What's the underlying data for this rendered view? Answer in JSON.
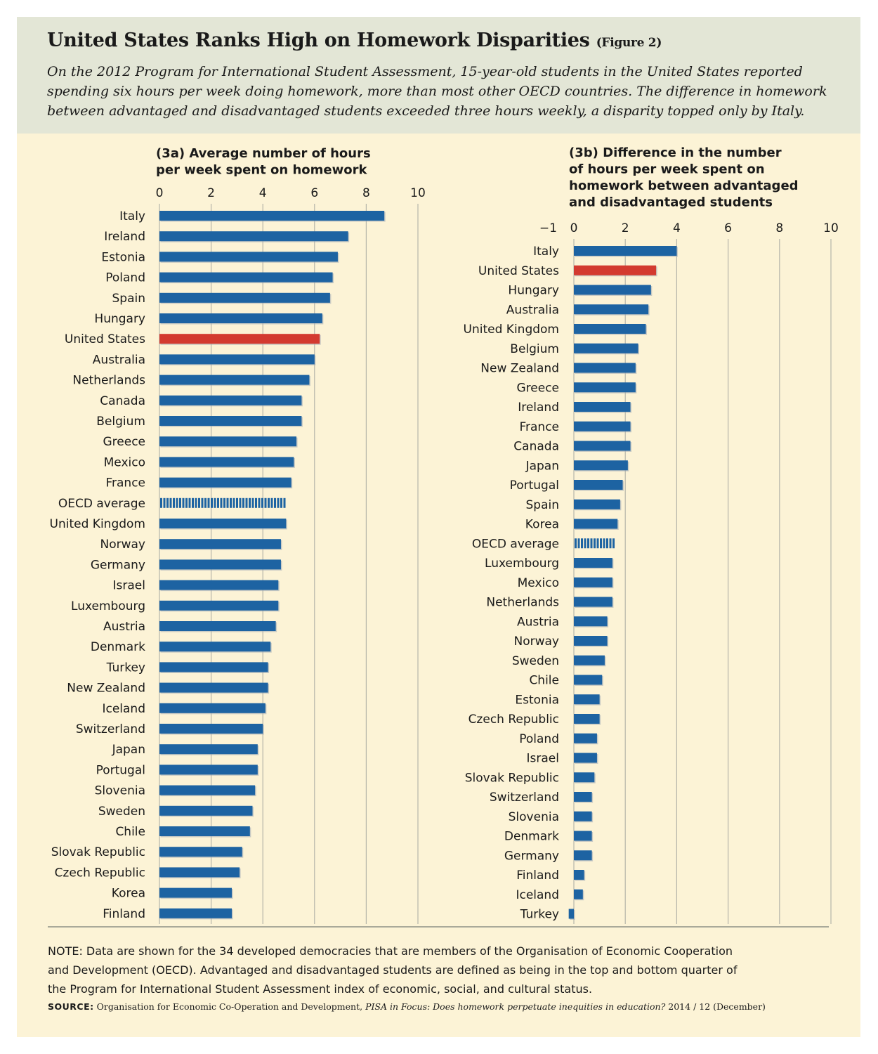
{
  "title": "United States Ranks High on Homework Disparities",
  "figure_label": "(Figure 2)",
  "subtitle_lines": [
    "On the 2012 Program for International Student Assessment, 15-year-old students in the United States reported",
    "spending six hours per week doing homework, more than most other OECD countries. The difference in homework",
    "between advantaged and disadvantaged students exceeded three hours weekly, a disparity topped only by Italy."
  ],
  "colors": {
    "bar": "#1d63a2",
    "highlight": "#d33a2f",
    "background": "#fcf3d6",
    "header_background": "#e3e6d6",
    "gridline": "#b5b5aa"
  },
  "chart_data": [
    {
      "type": "bar",
      "orientation": "horizontal",
      "title_prefix": "(3a)",
      "title_lines": [
        "Average number of hours",
        "per week spent on homework"
      ],
      "xlim": [
        0,
        10
      ],
      "ticks": [
        0,
        2,
        4,
        6,
        8,
        10
      ],
      "highlight": "United States",
      "dashed": "OECD average",
      "categories": [
        "Italy",
        "Ireland",
        "Estonia",
        "Poland",
        "Spain",
        "Hungary",
        "United States",
        "Australia",
        "Netherlands",
        "Canada",
        "Belgium",
        "Greece",
        "Mexico",
        "France",
        "OECD average",
        "United Kingdom",
        "Norway",
        "Germany",
        "Israel",
        "Luxembourg",
        "Austria",
        "Denmark",
        "Turkey",
        "New Zealand",
        "Iceland",
        "Switzerland",
        "Japan",
        "Portugal",
        "Slovenia",
        "Sweden",
        "Chile",
        "Slovak Republic",
        "Czech Republic",
        "Korea",
        "Finland"
      ],
      "values": [
        8.7,
        7.3,
        6.9,
        6.7,
        6.6,
        6.3,
        6.2,
        6.0,
        5.8,
        5.5,
        5.5,
        5.3,
        5.2,
        5.1,
        4.9,
        4.9,
        4.7,
        4.7,
        4.6,
        4.6,
        4.5,
        4.3,
        4.2,
        4.2,
        4.1,
        4.0,
        3.8,
        3.8,
        3.7,
        3.6,
        3.5,
        3.2,
        3.1,
        2.8,
        2.8
      ]
    },
    {
      "type": "bar",
      "orientation": "horizontal",
      "title_prefix": "(3b)",
      "title_lines": [
        "Difference in the number",
        "of hours per week spent on",
        "homework between advantaged",
        "and disadvantaged students"
      ],
      "xlim": [
        -1,
        10
      ],
      "ticks": [
        -1,
        0,
        2,
        4,
        6,
        8,
        10
      ],
      "tick_labels": [
        "−1",
        "0",
        "2",
        "4",
        "6",
        "8",
        "10"
      ],
      "highlight": "United States",
      "dashed": "OECD average",
      "categories": [
        "Italy",
        "United States",
        "Hungary",
        "Australia",
        "United Kingdom",
        "Belgium",
        "New Zealand",
        "Greece",
        "Ireland",
        "France",
        "Canada",
        "Japan",
        "Portugal",
        "Spain",
        "Korea",
        "OECD average",
        "Luxembourg",
        "Mexico",
        "Netherlands",
        "Austria",
        "Norway",
        "Sweden",
        "Chile",
        "Estonia",
        "Czech Republic",
        "Poland",
        "Israel",
        "Slovak Republic",
        "Switzerland",
        "Slovenia",
        "Denmark",
        "Germany",
        "Finland",
        "Iceland",
        "Turkey"
      ],
      "values": [
        4.0,
        3.2,
        3.0,
        2.9,
        2.8,
        2.5,
        2.4,
        2.4,
        2.2,
        2.2,
        2.2,
        2.1,
        1.9,
        1.8,
        1.7,
        1.6,
        1.5,
        1.5,
        1.5,
        1.3,
        1.3,
        1.2,
        1.1,
        1.0,
        1.0,
        0.9,
        0.9,
        0.8,
        0.7,
        0.7,
        0.7,
        0.7,
        0.4,
        0.35,
        -0.2
      ]
    }
  ],
  "note_lines": [
    "NOTE: Data are shown for the 34 developed democracies that are members of the Organisation of Economic Cooperation",
    "and Development (OECD). Advantaged and disadvantaged students are defined as being in the top and bottom quarter of",
    "the Program for International Student Assessment index of economic, social, and cultural status."
  ],
  "source": {
    "label": "SOURCE:",
    "text_before": "Organisation for Economic Co-Operation and Development,",
    "publication": "PISA in Focus: Does homework perpetuate inequities in education?",
    "text_after": "2014 / 12 (December)"
  }
}
